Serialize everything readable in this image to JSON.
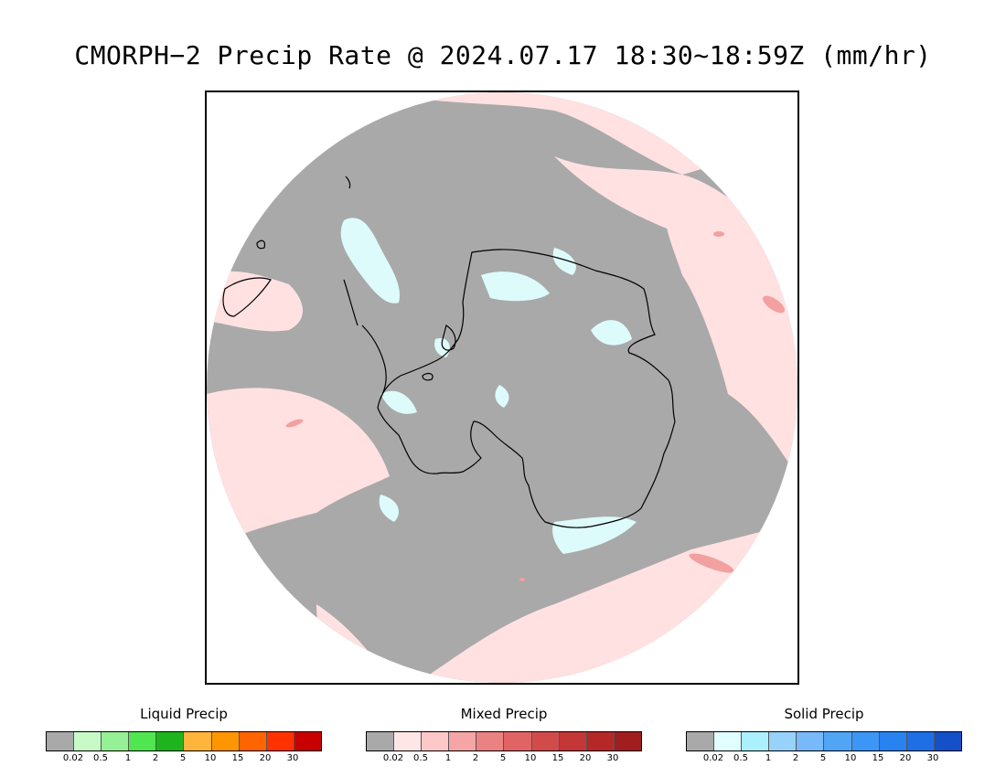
{
  "title": "CMORPH−2 Precip Rate @ 2024.07.17 18:30~18:59Z (mm/hr)",
  "map": {
    "projection": "south-polar-stereographic",
    "colors": {
      "no_precip_gray": "#a9a9a9",
      "mixed_light": "#ffe1e1",
      "mixed_medium": "#f2a0a0",
      "solid_light": "#ddfbfb",
      "coastline": "#000000"
    }
  },
  "legends": [
    {
      "title": "Liquid Precip",
      "colors": [
        "#a9a9a9",
        "#c8fac8",
        "#96f096",
        "#50e650",
        "#1eb41e",
        "#ffb43c",
        "#ff9600",
        "#ff6400",
        "#ff3200",
        "#c80000"
      ],
      "ticks": [
        "0.02",
        "0.5",
        "1",
        "2",
        "5",
        "10",
        "15",
        "20",
        "30"
      ]
    },
    {
      "title": "Mixed Precip",
      "colors": [
        "#a9a9a9",
        "#ffe6e6",
        "#ffc8c8",
        "#f5a5a5",
        "#eb8282",
        "#e16464",
        "#d24b4b",
        "#c33737",
        "#b42828",
        "#a01e1e"
      ],
      "ticks": [
        "0.02",
        "0.5",
        "1",
        "2",
        "5",
        "10",
        "15",
        "20",
        "30"
      ]
    },
    {
      "title": "Solid Precip",
      "colors": [
        "#a9a9a9",
        "#e1ffff",
        "#aaf0ff",
        "#96d2fa",
        "#78b9fa",
        "#50a5f5",
        "#3c96f5",
        "#2882f0",
        "#1e6ee6",
        "#1450c8"
      ],
      "ticks": [
        "0.02",
        "0.5",
        "1",
        "2",
        "5",
        "10",
        "15",
        "20",
        "30"
      ]
    }
  ]
}
